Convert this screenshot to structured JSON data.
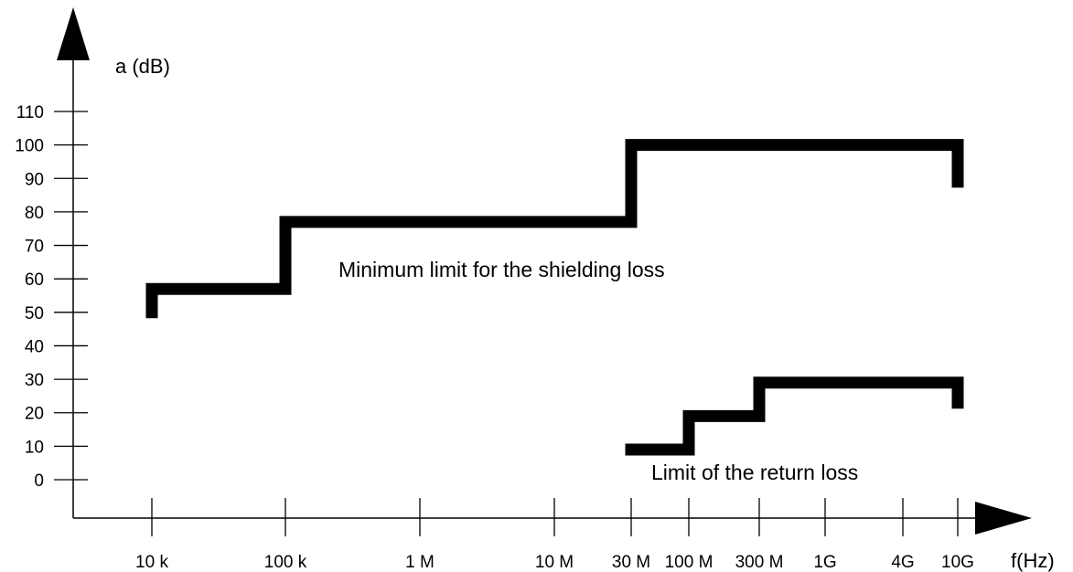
{
  "chart_data": {
    "type": "line",
    "xlabel": "f(Hz)",
    "ylabel": "a (dB)",
    "x_scale": "log",
    "x_ticks": [
      {
        "label": "10 k",
        "value": 10000
      },
      {
        "label": "100 k",
        "value": 100000
      },
      {
        "label": "1 M",
        "value": 1000000
      },
      {
        "label": "10 M",
        "value": 10000000
      },
      {
        "label": "30 M",
        "value": 30000000
      },
      {
        "label": "100 M",
        "value": 100000000
      },
      {
        "label": "300 M",
        "value": 300000000
      },
      {
        "label": "1G",
        "value": 1000000000
      },
      {
        "label": "4G",
        "value": 4000000000
      },
      {
        "label": "10G",
        "value": 10000000000
      }
    ],
    "y_ticks": [
      "0",
      "10",
      "20",
      "30",
      "40",
      "50",
      "60",
      "70",
      "80",
      "90",
      "100",
      "110"
    ],
    "ylim": [
      0,
      110
    ],
    "grid": false,
    "series": [
      {
        "name": "Minimum limit for the shielding loss",
        "points": [
          [
            10000,
            50
          ],
          [
            10000,
            57
          ],
          [
            100000,
            57
          ],
          [
            100000,
            77
          ],
          [
            30000000,
            77
          ],
          [
            30000000,
            100
          ],
          [
            10000000000,
            100
          ],
          [
            10000000000,
            89
          ]
        ]
      },
      {
        "name": "Limit of the return loss",
        "points": [
          [
            30000000,
            9
          ],
          [
            100000000,
            9
          ],
          [
            100000000,
            19
          ],
          [
            300000000,
            19
          ],
          [
            300000000,
            29
          ],
          [
            10000000000,
            29
          ],
          [
            10000000000,
            23
          ]
        ]
      }
    ],
    "annotations": [
      "Minimum limit for the shielding loss",
      "Limit of the return loss"
    ]
  }
}
